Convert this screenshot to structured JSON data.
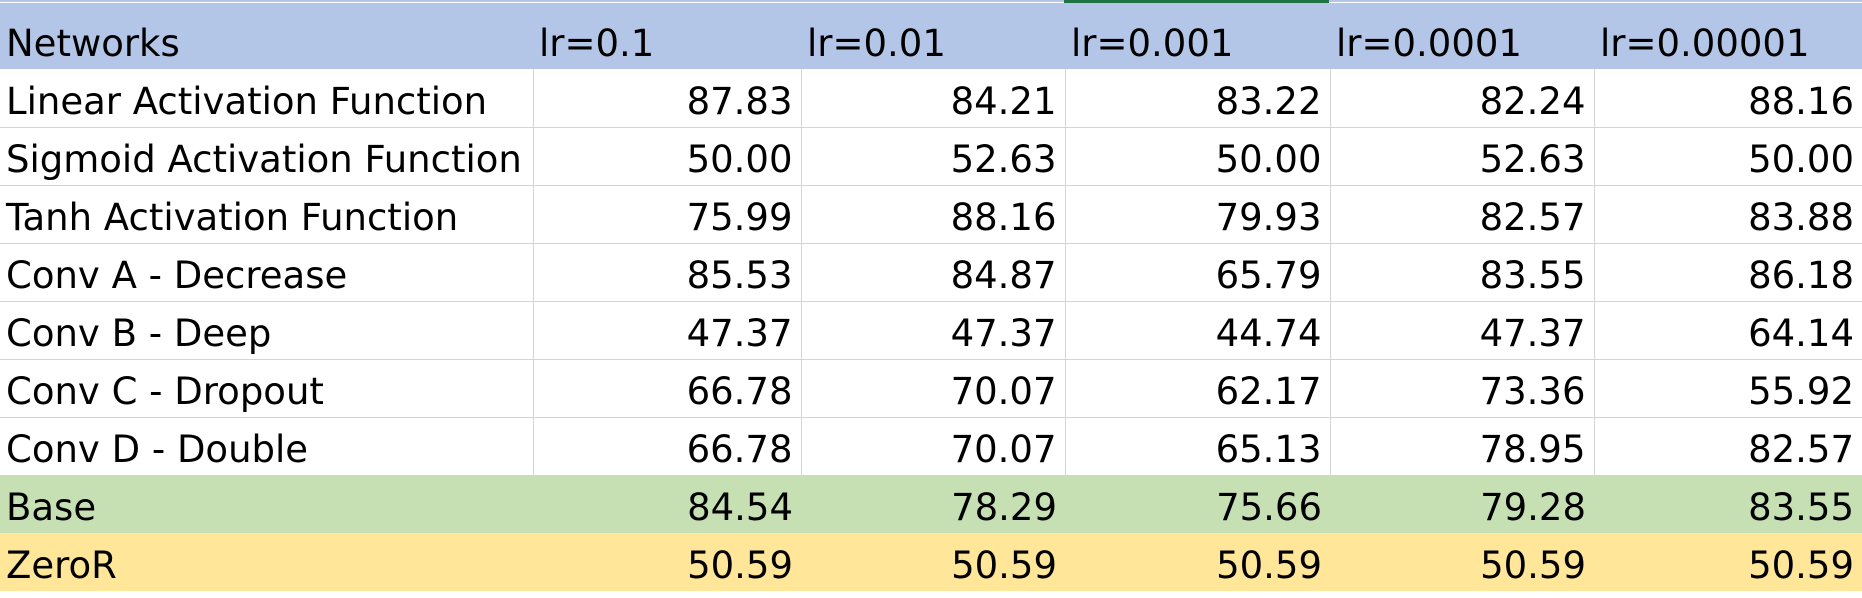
{
  "table": {
    "headers": [
      "Networks",
      "lr=0.1",
      "lr=0.01",
      "lr=0.001",
      "lr=0.0001",
      "lr=0.00001"
    ],
    "rows": [
      {
        "name": "Linear Activation Function",
        "values": [
          "87.83",
          "84.21",
          "83.22",
          "82.24",
          "88.16"
        ]
      },
      {
        "name": "Sigmoid Activation Function",
        "values": [
          "50.00",
          "52.63",
          "50.00",
          "52.63",
          "50.00"
        ]
      },
      {
        "name": "Tanh Activation Function",
        "values": [
          "75.99",
          "88.16",
          "79.93",
          "82.57",
          "83.88"
        ]
      },
      {
        "name": "Conv A - Decrease",
        "values": [
          "85.53",
          "84.87",
          "65.79",
          "83.55",
          "86.18"
        ]
      },
      {
        "name": "Conv B - Deep",
        "values": [
          "47.37",
          "47.37",
          "44.74",
          "47.37",
          "64.14"
        ]
      },
      {
        "name": "Conv C - Dropout",
        "values": [
          "66.78",
          "70.07",
          "62.17",
          "73.36",
          "55.92"
        ]
      },
      {
        "name": "Conv D - Double",
        "values": [
          "66.78",
          "70.07",
          "65.13",
          "78.95",
          "82.57"
        ]
      },
      {
        "name": "Base",
        "values": [
          "84.54",
          "78.29",
          "75.66",
          "79.28",
          "83.55"
        ]
      },
      {
        "name": "ZeroR",
        "values": [
          "50.59",
          "50.59",
          "50.59",
          "50.59",
          "50.59"
        ]
      }
    ]
  },
  "colors": {
    "header_fill": "#b4c6e7",
    "base_fill": "#c6e0b4",
    "zeror_fill": "#ffe699",
    "gridline": "#d4d4d4",
    "selection": "#217346"
  }
}
